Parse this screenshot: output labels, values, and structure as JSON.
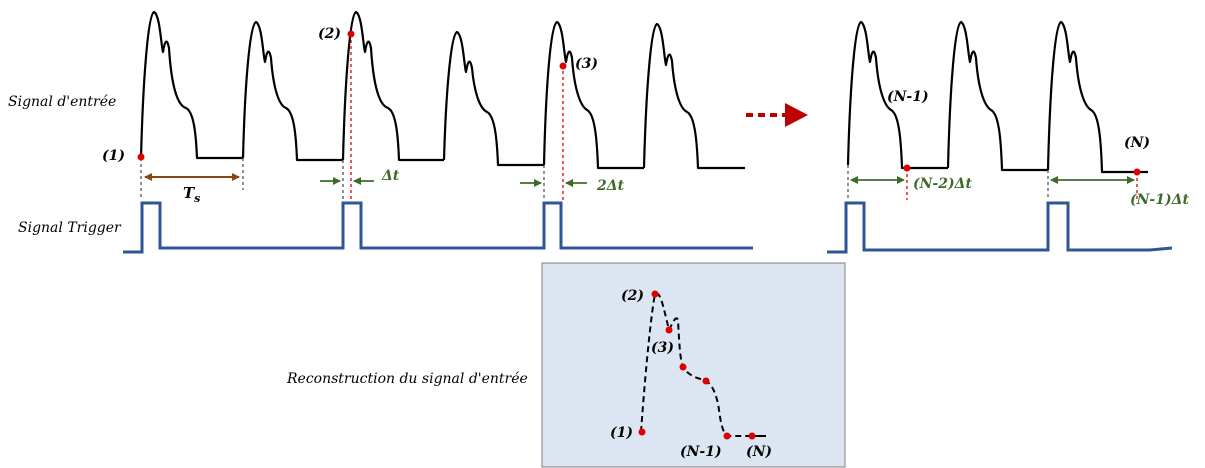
{
  "labels": {
    "input_signal": "Signal d'entrée",
    "trigger_signal": "Signal Trigger",
    "reconstruction": "Reconstruction du signal d'entrée",
    "period": "T",
    "period_sub": "s",
    "p1": "(1)",
    "p2": "(2)",
    "p3": "(3)",
    "pN1": "(N-1)",
    "pN": "(N)",
    "d1": "Δt",
    "d2": "2Δt",
    "dN1": "(N-2)Δt",
    "dN": "(N-1)Δt",
    "r_p1": "(1)",
    "r_p2": "(2)",
    "r_p3": "(3)",
    "r_pN1": "(N-1)",
    "r_pN": "(N)"
  },
  "colors": {
    "signal": "#000000",
    "trigger": "#2f5597",
    "sample_point": "#e00000",
    "delay_arrow": "#3f6b2a",
    "period_arrow": "#8b4513",
    "continuation_arrow": "#c00000",
    "reconstruction_bg": "#dce6f2"
  }
}
